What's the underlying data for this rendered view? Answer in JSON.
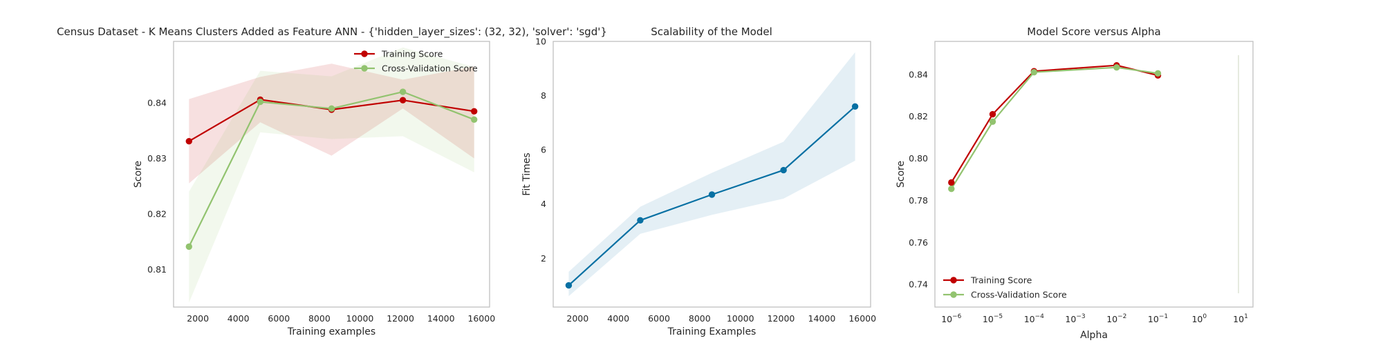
{
  "colors": {
    "training": "#c00000",
    "cross_validation": "#92c36f",
    "fit": "#0770a3"
  },
  "chart_data": [
    {
      "type": "line",
      "title": "Census Dataset - K Means Clusters Added as Feature ANN - {'hidden_layer_sizes': (32, 32), 'solver': 'sgd'}",
      "xlabel": "Training examples",
      "ylabel": "Score",
      "xlim": [
        800,
        16400
      ],
      "ylim": [
        0.8032,
        0.8511
      ],
      "xticks": [
        2000,
        4000,
        6000,
        8000,
        10000,
        12000,
        14000,
        16000
      ],
      "yticks": [
        0.81,
        0.82,
        0.83,
        0.84
      ],
      "ytick_labels": [
        "0.81",
        "0.82",
        "0.83",
        "0.84"
      ],
      "legend_position": "top-right",
      "grid": false,
      "x": [
        1560,
        5080,
        8600,
        12120,
        15640
      ],
      "series": [
        {
          "name": "Training Score",
          "color_key": "training",
          "values": [
            0.8331,
            0.8406,
            0.8388,
            0.8405,
            0.8385
          ],
          "band_lower": [
            0.8255,
            0.8365,
            0.8305,
            0.839,
            0.83
          ],
          "band_upper": [
            0.8407,
            0.8447,
            0.8471,
            0.8442,
            0.8466
          ]
        },
        {
          "name": "Cross-Validation Score",
          "color_key": "cross_validation",
          "values": [
            0.8141,
            0.8402,
            0.839,
            0.842,
            0.837
          ],
          "band_lower": [
            0.804,
            0.8347,
            0.8335,
            0.834,
            0.8275
          ],
          "band_upper": [
            0.824,
            0.8458,
            0.8448,
            0.85,
            0.8465
          ]
        }
      ]
    },
    {
      "type": "line",
      "title": "Scalability of the Model",
      "xlabel": "Training Examples",
      "ylabel": "Fit Times",
      "xlim": [
        800,
        16400
      ],
      "ylim": [
        0.2,
        10.0
      ],
      "xticks": [
        2000,
        4000,
        6000,
        8000,
        10000,
        12000,
        14000,
        16000
      ],
      "yticks": [
        2,
        4,
        6,
        8,
        10
      ],
      "ytick_labels": [
        "2",
        "4",
        "6",
        "8",
        "10"
      ],
      "grid": false,
      "x": [
        1560,
        5080,
        8600,
        12120,
        15640
      ],
      "series": [
        {
          "color_key": "fit",
          "values": [
            1.0,
            3.4,
            4.35,
            5.25,
            7.6
          ],
          "band_lower": [
            0.6,
            2.9,
            3.6,
            4.2,
            5.6
          ],
          "band_upper": [
            1.5,
            3.9,
            5.15,
            6.3,
            9.6
          ]
        }
      ]
    },
    {
      "type": "line",
      "title": "Model Score versus Alpha",
      "xlabel": "Alpha",
      "ylabel": "Score",
      "x_scale": "log",
      "xlim": [
        4e-07,
        20
      ],
      "ylim": [
        0.7292,
        0.8557
      ],
      "xticks": [
        1e-06,
        1e-05,
        0.0001,
        0.001,
        0.01,
        0.1,
        1,
        10
      ],
      "xtick_labels": [
        {
          "base": "10",
          "exp": "−6"
        },
        {
          "base": "10",
          "exp": "−5"
        },
        {
          "base": "10",
          "exp": "−4"
        },
        {
          "base": "10",
          "exp": "−3"
        },
        {
          "base": "10",
          "exp": "−2"
        },
        {
          "base": "10",
          "exp": "−1"
        },
        {
          "base": "10",
          "exp": "0"
        },
        {
          "base": "10",
          "exp": "1"
        }
      ],
      "yticks": [
        0.74,
        0.76,
        0.78,
        0.8,
        0.82,
        0.84
      ],
      "ytick_labels": [
        "0.74",
        "0.76",
        "0.78",
        "0.80",
        "0.82",
        "0.84"
      ],
      "legend_position": "lower-left",
      "grid": false,
      "x": [
        1e-06,
        1e-05,
        0.0001,
        0.001,
        0.01,
        0.1
      ],
      "series": [
        {
          "name": "Training Score",
          "color_key": "training",
          "values": [
            0.7885,
            0.821,
            0.8415,
            null,
            0.8443,
            0.8395
          ]
        },
        {
          "name": "Cross-Validation Score",
          "color_key": "cross_validation",
          "values": [
            0.7855,
            0.8175,
            0.841,
            null,
            0.8433,
            0.8405
          ]
        }
      ]
    }
  ]
}
